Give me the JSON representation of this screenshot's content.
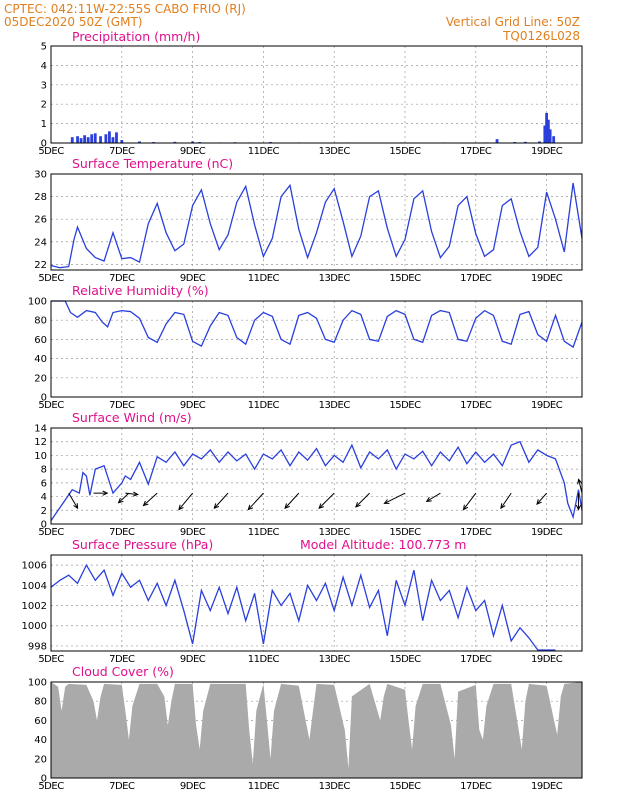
{
  "header": {
    "line1": "CPTEC:  042:11W-22:55S  CABO FRIO (RJ)",
    "line2": "05DEC2020 50Z (GMT)",
    "grid_note": "Vertical Grid Line: 50Z",
    "code": "TQ0126L028"
  },
  "colors": {
    "header": "#e08020",
    "title": "#e0108c",
    "series": "#2a3fdc",
    "cloud": "#aaaaaa"
  },
  "x_axis": {
    "start": 0,
    "end": 15,
    "tick_days": [
      0,
      2,
      4,
      6,
      8,
      10,
      12,
      14
    ],
    "tick_labels": [
      "5DEC",
      "7DEC",
      "9DEC",
      "11DEC",
      "13DEC",
      "15DEC",
      "17DEC",
      "19DEC"
    ]
  },
  "chart_data": [
    {
      "id": "precip",
      "type": "bar",
      "title": "Precipitation (mm/h)",
      "ylim": [
        0,
        5
      ],
      "yticks": [
        0,
        1,
        2,
        3,
        4,
        5
      ],
      "x": [
        0.6,
        0.75,
        0.85,
        0.95,
        1.05,
        1.15,
        1.25,
        1.4,
        1.55,
        1.65,
        1.75,
        1.85,
        2.0,
        2.5,
        2.9,
        3.5,
        4.0,
        4.2,
        4.8,
        5.2,
        5.6,
        6.2,
        7.0,
        7.6,
        8.4,
        9.2,
        9.9,
        10.5,
        11.1,
        11.8,
        12.3,
        12.6,
        13.1,
        13.4,
        13.8,
        13.95,
        14.0,
        14.05,
        14.1,
        14.2
      ],
      "values": [
        0.3,
        0.35,
        0.25,
        0.4,
        0.3,
        0.45,
        0.5,
        0.35,
        0.45,
        0.6,
        0.3,
        0.55,
        0.15,
        0.08,
        0.05,
        0.06,
        0.08,
        0.05,
        0.03,
        0.04,
        0.03,
        0.05,
        0.03,
        0.02,
        0.03,
        0.02,
        0.03,
        0.02,
        0.03,
        0.02,
        0.03,
        0.2,
        0.05,
        0.06,
        0.08,
        0.9,
        1.55,
        1.2,
        0.7,
        0.35
      ]
    },
    {
      "id": "temp",
      "type": "line",
      "title": "Surface Temperature (nC)",
      "ylim": [
        21.5,
        30
      ],
      "yticks": [
        22,
        24,
        26,
        28,
        30
      ],
      "x": [
        0,
        0.25,
        0.5,
        0.65,
        0.75,
        1.0,
        1.25,
        1.5,
        1.75,
        2.0,
        2.25,
        2.5,
        2.75,
        3.0,
        3.25,
        3.5,
        3.75,
        4.0,
        4.25,
        4.5,
        4.75,
        5.0,
        5.25,
        5.5,
        5.75,
        6.0,
        6.25,
        6.5,
        6.75,
        7.0,
        7.25,
        7.5,
        7.75,
        8.0,
        8.25,
        8.5,
        8.75,
        9.0,
        9.25,
        9.5,
        9.75,
        10.0,
        10.25,
        10.5,
        10.75,
        11.0,
        11.25,
        11.5,
        11.75,
        12.0,
        12.25,
        12.5,
        12.75,
        13.0,
        13.25,
        13.5,
        13.75,
        14.0,
        14.25,
        14.5,
        14.75,
        15.0
      ],
      "values": [
        21.9,
        21.7,
        21.8,
        24.2,
        25.3,
        23.4,
        22.6,
        22.3,
        24.8,
        22.5,
        22.6,
        22.2,
        25.6,
        27.4,
        24.8,
        23.2,
        23.8,
        27.2,
        28.6,
        25.6,
        23.3,
        24.6,
        27.5,
        28.9,
        25.5,
        22.7,
        24.3,
        28.0,
        29.0,
        25.1,
        22.6,
        24.8,
        27.5,
        28.7,
        25.8,
        22.7,
        24.5,
        28.0,
        28.5,
        25.2,
        22.7,
        24.2,
        27.8,
        28.5,
        24.9,
        22.6,
        23.6,
        27.2,
        28.0,
        24.7,
        22.7,
        23.3,
        27.2,
        27.8,
        24.9,
        22.7,
        23.5,
        28.4,
        26.0,
        23.1,
        29.2,
        24.3
      ]
    },
    {
      "id": "rh",
      "type": "line",
      "title": "Relative Humidity (%)",
      "ylim": [
        0,
        100
      ],
      "yticks": [
        0,
        20,
        40,
        60,
        80,
        100
      ],
      "x": [
        0,
        0.4,
        0.55,
        0.75,
        1.0,
        1.25,
        1.45,
        1.6,
        1.75,
        2.0,
        2.25,
        2.5,
        2.75,
        3.0,
        3.25,
        3.5,
        3.75,
        4.0,
        4.25,
        4.5,
        4.75,
        5.0,
        5.25,
        5.5,
        5.75,
        6.0,
        6.25,
        6.5,
        6.75,
        7.0,
        7.25,
        7.5,
        7.75,
        8.0,
        8.25,
        8.5,
        8.75,
        9.0,
        9.25,
        9.5,
        9.75,
        10.0,
        10.25,
        10.5,
        10.75,
        11.0,
        11.25,
        11.5,
        11.75,
        12.0,
        12.25,
        12.5,
        12.75,
        13.0,
        13.25,
        13.5,
        13.75,
        14.0,
        14.25,
        14.5,
        14.75,
        15.0
      ],
      "values": [
        100,
        100,
        88,
        83,
        90,
        88,
        78,
        73,
        88,
        90,
        89,
        82,
        62,
        57,
        76,
        88,
        86,
        58,
        53,
        74,
        88,
        85,
        62,
        55,
        80,
        88,
        84,
        60,
        55,
        85,
        88,
        82,
        60,
        57,
        80,
        90,
        86,
        60,
        58,
        84,
        90,
        86,
        60,
        57,
        85,
        90,
        88,
        60,
        58,
        82,
        90,
        85,
        58,
        55,
        86,
        89,
        65,
        58,
        85,
        58,
        52,
        78
      ]
    },
    {
      "id": "wind",
      "type": "line",
      "title": "Surface Wind (m/s)",
      "ylim": [
        0,
        14
      ],
      "yticks": [
        0,
        2,
        4,
        6,
        8,
        10,
        12,
        14
      ],
      "x": [
        0,
        0.2,
        0.4,
        0.6,
        0.8,
        0.9,
        1.0,
        1.1,
        1.25,
        1.4,
        1.5,
        1.75,
        2.0,
        2.1,
        2.25,
        2.5,
        2.75,
        3.0,
        3.25,
        3.5,
        3.75,
        4.0,
        4.25,
        4.5,
        4.75,
        5.0,
        5.25,
        5.5,
        5.75,
        6.0,
        6.25,
        6.5,
        6.75,
        7.0,
        7.25,
        7.5,
        7.75,
        8.0,
        8.25,
        8.5,
        8.75,
        9.0,
        9.25,
        9.5,
        9.75,
        10.0,
        10.25,
        10.5,
        10.75,
        11.0,
        11.25,
        11.5,
        11.75,
        12.0,
        12.25,
        12.5,
        12.75,
        13.0,
        13.25,
        13.5,
        13.75,
        14.0,
        14.25,
        14.5,
        14.6,
        14.75,
        14.9,
        15.0
      ],
      "values": [
        0.5,
        2.0,
        3.5,
        5.0,
        4.5,
        7.5,
        7.0,
        4.2,
        8.0,
        8.3,
        8.5,
        4.5,
        6.0,
        7.0,
        6.5,
        9.0,
        5.8,
        9.8,
        9.0,
        10.5,
        8.5,
        10.2,
        9.5,
        10.8,
        9.0,
        10.5,
        9.2,
        10.2,
        8.0,
        10.2,
        9.5,
        10.8,
        8.5,
        10.5,
        9.3,
        11.0,
        8.5,
        10.0,
        9.0,
        11.5,
        8.2,
        10.5,
        9.5,
        10.8,
        8.0,
        10.2,
        9.5,
        10.6,
        8.5,
        10.5,
        9.2,
        11.2,
        8.8,
        10.5,
        9.0,
        10.2,
        8.5,
        11.5,
        12.0,
        9.0,
        10.8,
        10.0,
        9.5,
        6.0,
        3.0,
        1.0,
        5.0,
        2.0
      ],
      "barbs": [
        {
          "x": 0.5,
          "u": -1.3,
          "v": 2.2
        },
        {
          "x": 1.2,
          "u": -2.0,
          "v": 0
        },
        {
          "x": 2.1,
          "u": -1.8,
          "v": 0.2
        },
        {
          "x": 2.2,
          "u": 1.5,
          "v": 1.4
        },
        {
          "x": 3.0,
          "u": 2.0,
          "v": 1.8
        },
        {
          "x": 4.0,
          "u": 2.0,
          "v": 2.4
        },
        {
          "x": 5.0,
          "u": 2.0,
          "v": 2.2
        },
        {
          "x": 6.0,
          "u": 2.2,
          "v": 2.4
        },
        {
          "x": 7.0,
          "u": 2.0,
          "v": 2.2
        },
        {
          "x": 8.0,
          "u": 2.2,
          "v": 2.2
        },
        {
          "x": 9.0,
          "u": 2.0,
          "v": 2.0
        },
        {
          "x": 10.0,
          "u": 3.0,
          "v": 1.5
        },
        {
          "x": 11.0,
          "u": 2.0,
          "v": 1.2
        },
        {
          "x": 12.0,
          "u": 1.8,
          "v": 2.4
        },
        {
          "x": 13.0,
          "u": 1.5,
          "v": 2.2
        },
        {
          "x": 14.0,
          "u": 1.4,
          "v": 1.6
        },
        {
          "x": 14.9,
          "u": 0,
          "v": 2.4
        },
        {
          "x": 15.0,
          "u": 0.5,
          "v": -2.0
        }
      ]
    },
    {
      "id": "pressure",
      "type": "line",
      "title": "Surface Pressure (hPa)",
      "subtitle": "Model Altitude: 100.773  m",
      "ylim": [
        997.5,
        1007
      ],
      "yticks": [
        998,
        1000,
        1002,
        1004,
        1006
      ],
      "x": [
        0,
        0.25,
        0.5,
        0.75,
        1.0,
        1.25,
        1.5,
        1.75,
        2.0,
        2.25,
        2.5,
        2.75,
        3.0,
        3.25,
        3.5,
        3.75,
        4.0,
        4.25,
        4.5,
        4.75,
        5.0,
        5.25,
        5.5,
        5.75,
        6.0,
        6.25,
        6.5,
        6.75,
        7.0,
        7.25,
        7.5,
        7.75,
        8.0,
        8.25,
        8.5,
        8.75,
        9.0,
        9.25,
        9.5,
        9.75,
        10.0,
        10.25,
        10.5,
        10.75,
        11.0,
        11.25,
        11.5,
        11.75,
        12.0,
        12.25,
        12.5,
        12.75,
        13.0,
        13.25,
        13.5,
        13.75,
        14.0,
        14.25
      ],
      "values": [
        1003.8,
        1004.5,
        1005.0,
        1004.2,
        1006.0,
        1004.5,
        1005.5,
        1003.0,
        1005.2,
        1003.8,
        1004.5,
        1002.5,
        1004.2,
        1002.0,
        1004.5,
        1001.5,
        998.2,
        1003.5,
        1001.5,
        1003.8,
        1001.2,
        1003.8,
        1000.5,
        1003.2,
        998.2,
        1003.5,
        1002.0,
        1003.2,
        1000.5,
        1004.0,
        1002.5,
        1004.2,
        1001.5,
        1004.8,
        1002.0,
        1005.0,
        1001.8,
        1003.5,
        999.0,
        1004.5,
        1002.0,
        1005.5,
        1000.5,
        1004.5,
        1002.5,
        1003.5,
        1000.8,
        1003.8,
        1001.5,
        1002.5,
        999.0,
        1002.0,
        998.5,
        999.8,
        998.8,
        997.6,
        997.6,
        997.6
      ]
    },
    {
      "id": "cloud",
      "type": "area",
      "title": "Cloud Cover (%)",
      "ylim": [
        0,
        100
      ],
      "yticks": [
        0,
        20,
        40,
        60,
        80,
        100
      ],
      "x": [
        0,
        0.2,
        0.3,
        0.4,
        0.5,
        1.0,
        1.2,
        1.3,
        1.4,
        1.5,
        2.0,
        2.1,
        2.2,
        2.3,
        2.5,
        3.0,
        3.2,
        3.3,
        3.4,
        3.5,
        4.0,
        4.1,
        4.2,
        4.3,
        4.5,
        5.0,
        5.5,
        5.6,
        5.7,
        5.8,
        6.0,
        6.1,
        6.2,
        6.3,
        6.5,
        7.0,
        7.3,
        7.4,
        7.5,
        8.0,
        8.3,
        8.4,
        8.5,
        9.0,
        9.3,
        9.4,
        9.5,
        10.0,
        10.1,
        10.2,
        10.3,
        10.5,
        11.0,
        11.3,
        11.4,
        11.5,
        12.0,
        12.1,
        12.2,
        12.3,
        12.5,
        13.0,
        13.3,
        13.4,
        13.5,
        14.0,
        14.3,
        14.4,
        14.5,
        15.0
      ],
      "values": [
        100,
        95,
        70,
        95,
        98,
        97,
        80,
        60,
        85,
        98,
        97,
        70,
        40,
        75,
        98,
        98,
        85,
        55,
        80,
        98,
        98,
        55,
        30,
        70,
        98,
        98,
        98,
        50,
        15,
        70,
        98,
        60,
        20,
        70,
        98,
        96,
        40,
        70,
        98,
        97,
        50,
        10,
        85,
        98,
        60,
        85,
        98,
        92,
        60,
        30,
        75,
        98,
        98,
        55,
        20,
        90,
        97,
        50,
        40,
        75,
        98,
        98,
        30,
        80,
        98,
        96,
        45,
        85,
        98,
        100
      ]
    }
  ]
}
